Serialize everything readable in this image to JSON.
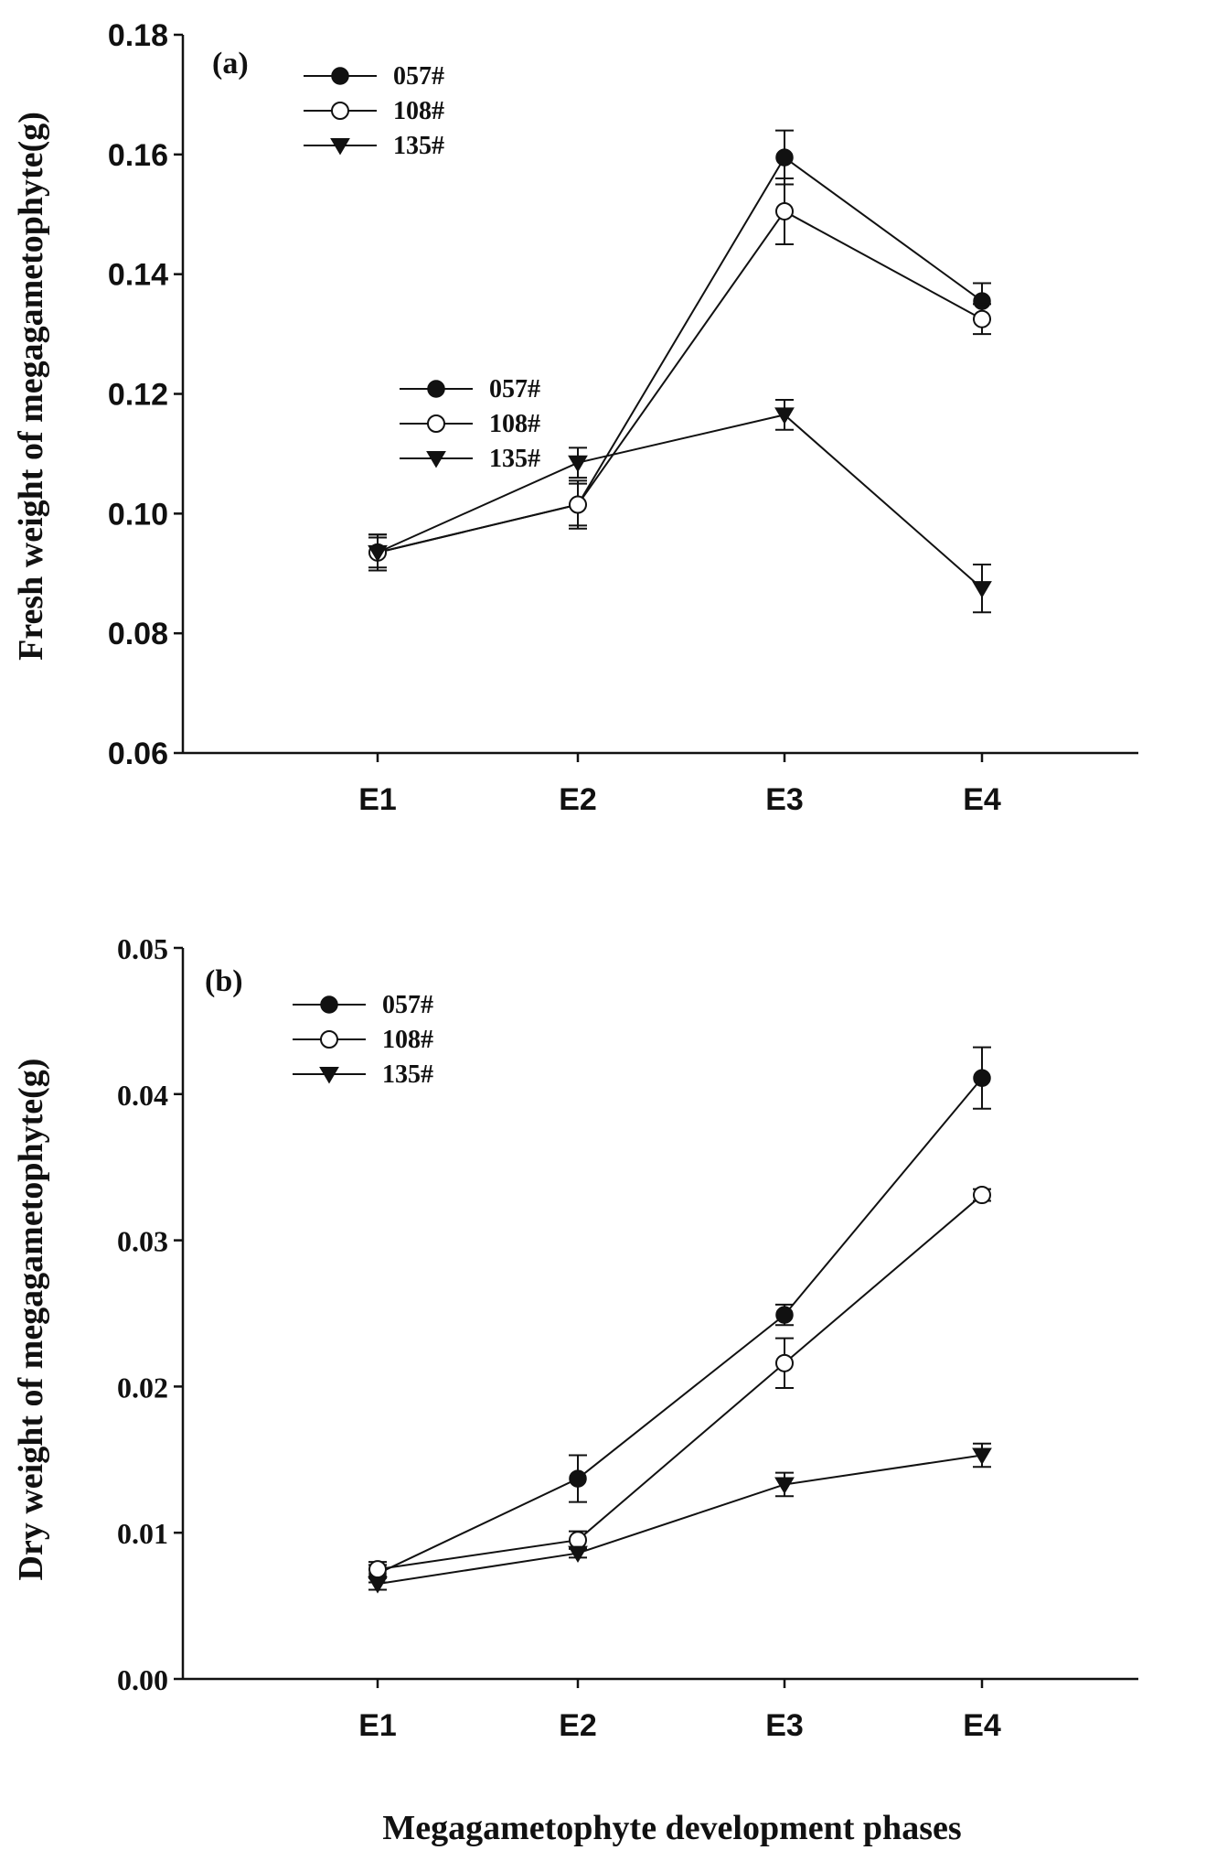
{
  "figure": {
    "xlabel_shared": "Megagametophyte development phases"
  },
  "chart_data": [
    {
      "type": "line",
      "panel_label": "(a)",
      "title": "",
      "xlabel": "",
      "ylabel": "Fresh weight of megagametophyte(g)",
      "categories": [
        "E1",
        "E2",
        "E3",
        "E4"
      ],
      "ylim": [
        0.06,
        0.18
      ],
      "yticks": [
        0.06,
        0.08,
        0.1,
        0.12,
        0.14,
        0.16,
        0.18
      ],
      "ytick_labels": [
        "0.06",
        "0.08",
        "0.10",
        "0.12",
        "0.14",
        "0.16",
        "0.18"
      ],
      "grid": false,
      "legend_position": "top-left",
      "legend_duplicate": "center-left",
      "series": [
        {
          "name": "057#",
          "marker": "filled-circle",
          "values": [
            0.0935,
            0.1015,
            0.1595,
            0.1355
          ],
          "errors": [
            0.0025,
            0.004,
            0.0045,
            0.003
          ]
        },
        {
          "name": "108#",
          "marker": "open-circle",
          "values": [
            0.0935,
            0.1015,
            0.1505,
            0.1325
          ],
          "errors": [
            0.003,
            0.0035,
            0.0055,
            0.0025
          ]
        },
        {
          "name": "135#",
          "marker": "filled-triangle-down",
          "values": [
            0.0935,
            0.1085,
            0.1165,
            0.0875
          ],
          "errors": [
            0.003,
            0.0025,
            0.0025,
            0.004
          ]
        }
      ]
    },
    {
      "type": "line",
      "panel_label": "(b)",
      "title": "",
      "xlabel": "Megagametophyte development phases",
      "ylabel": "Dry weight of megagametophyte(g)",
      "categories": [
        "E1",
        "E2",
        "E3",
        "E4"
      ],
      "ylim": [
        0.0,
        0.05
      ],
      "yticks": [
        0.0,
        0.01,
        0.02,
        0.03,
        0.04,
        0.05
      ],
      "ytick_labels": [
        "0.00",
        "0.01",
        "0.02",
        "0.03",
        "0.04",
        "0.05"
      ],
      "grid": false,
      "legend_position": "top-left",
      "series": [
        {
          "name": "057#",
          "marker": "filled-circle",
          "values": [
            0.0072,
            0.0137,
            0.0249,
            0.0411
          ],
          "errors": [
            0.0006,
            0.0016,
            0.0007,
            0.0021
          ]
        },
        {
          "name": "108#",
          "marker": "open-circle",
          "values": [
            0.0075,
            0.0095,
            0.0216,
            0.0331
          ],
          "errors": [
            0.0005,
            0.0006,
            0.0017,
            0.0004
          ]
        },
        {
          "name": "135#",
          "marker": "filled-triangle-down",
          "values": [
            0.0065,
            0.0086,
            0.0133,
            0.0153
          ],
          "errors": [
            0.0004,
            0.0003,
            0.0008,
            0.0008
          ]
        }
      ]
    }
  ]
}
